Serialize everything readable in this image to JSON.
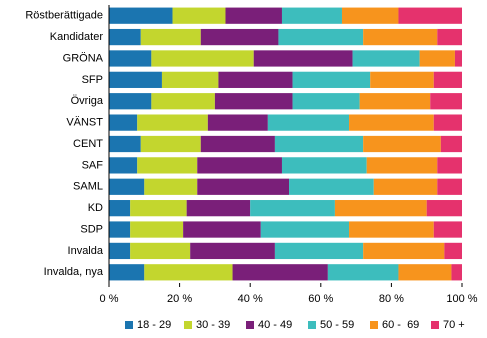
{
  "chart_data": {
    "type": "stacked_bar_horizontal",
    "categories": [
      "Röstberättigade",
      "Kandidater",
      "GRÖNA",
      "SFP",
      "Övriga",
      "VÄNST",
      "CENT",
      "SAF",
      "SAML",
      "KD",
      "SDP",
      "Invalda",
      "Invalda, nya"
    ],
    "series": [
      {
        "name": "18 - 29",
        "color": "#1b75b0",
        "values": [
          18,
          9,
          12,
          15,
          12,
          8,
          9,
          8,
          10,
          6,
          6,
          6,
          10
        ]
      },
      {
        "name": "30 - 39",
        "color": "#c3d62e",
        "values": [
          15,
          17,
          29,
          16,
          18,
          20,
          17,
          17,
          15,
          16,
          15,
          17,
          25
        ]
      },
      {
        "name": "40 - 49",
        "color": "#7a1f79",
        "values": [
          16,
          22,
          28,
          21,
          22,
          17,
          21,
          24,
          26,
          18,
          22,
          24,
          27
        ]
      },
      {
        "name": "50 - 59",
        "color": "#3dbdbd",
        "values": [
          17,
          24,
          19,
          22,
          19,
          23,
          25,
          24,
          24,
          24,
          25,
          25,
          20
        ]
      },
      {
        "name": "60 -  69",
        "color": "#f7941d",
        "values": [
          16,
          21,
          10,
          18,
          20,
          24,
          22,
          20,
          18,
          26,
          24,
          23,
          15
        ]
      },
      {
        "name": "70 +",
        "color": "#e5326d",
        "values": [
          18,
          7,
          2,
          8,
          9,
          8,
          6,
          7,
          7,
          10,
          8,
          5,
          3
        ]
      }
    ],
    "xlim": [
      0,
      100
    ],
    "xticks": [
      {
        "value": 0,
        "label": "0 %"
      },
      {
        "value": 20,
        "label": "20 %"
      },
      {
        "value": 40,
        "label": "40 %"
      },
      {
        "value": 60,
        "label": "60 %"
      },
      {
        "value": 80,
        "label": "80 %"
      },
      {
        "value": 100,
        "label": "100 %"
      }
    ],
    "legend": "bottom"
  }
}
